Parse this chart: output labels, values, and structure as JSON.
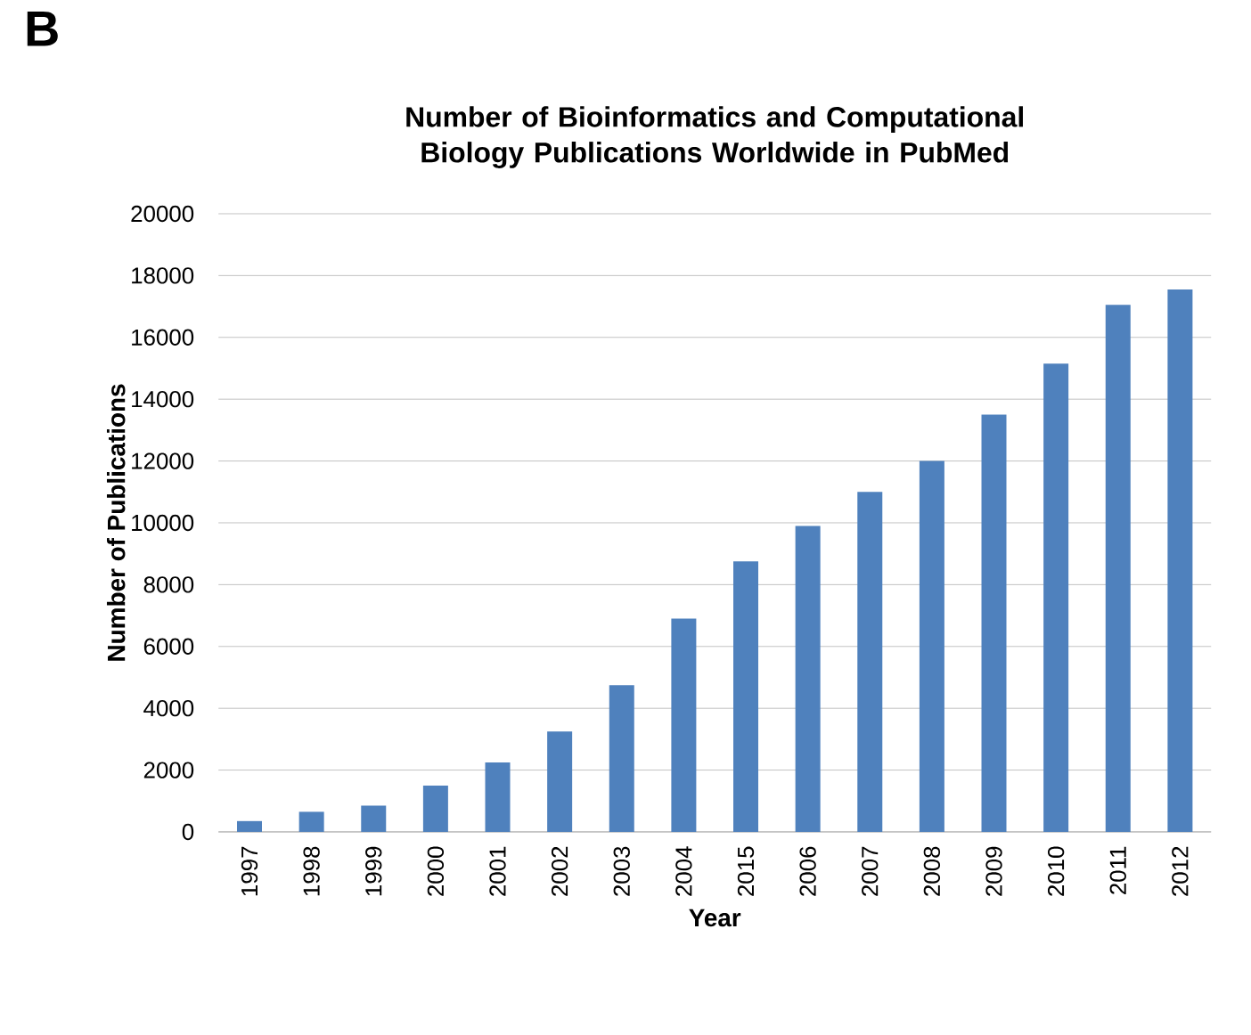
{
  "chart_data": {
    "type": "bar",
    "title": "Number of Bioinformatics and Computational Biology Publications Worldwide in PubMed",
    "xlabel": "Year",
    "ylabel": "Number of Publications",
    "annotations": [
      "B"
    ],
    "categories": [
      "1997",
      "1998",
      "1999",
      "2000",
      "2001",
      "2002",
      "2003",
      "2004",
      "2015",
      "2006",
      "2007",
      "2008",
      "2009",
      "2010",
      "2011",
      "2012"
    ],
    "values": [
      350,
      650,
      850,
      1500,
      2250,
      3250,
      4750,
      6900,
      8750,
      9900,
      11000,
      12000,
      13500,
      15150,
      17050,
      17550
    ],
    "color": "#4f81bd",
    "ylim": [
      0,
      20000
    ],
    "yticks": [
      0,
      2000,
      4000,
      6000,
      8000,
      10000,
      12000,
      14000,
      16000,
      18000,
      20000
    ],
    "grid": "y"
  }
}
